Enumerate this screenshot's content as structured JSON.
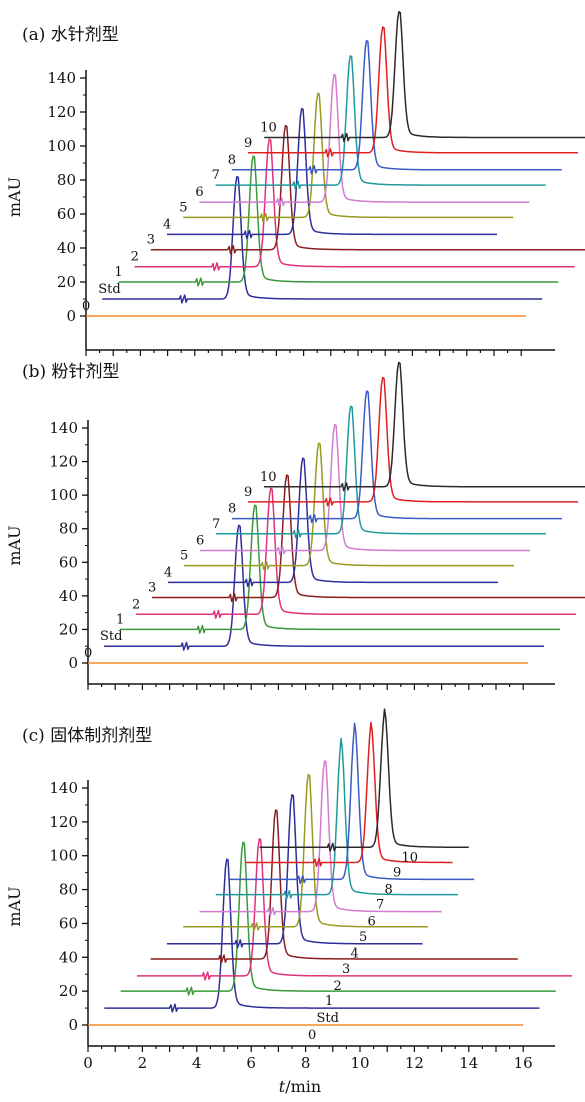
{
  "chart_data": [
    {
      "type": "line",
      "title": "(a) 水针剂型",
      "ylabel": "mAU",
      "ylim": [
        0,
        140
      ],
      "yticks": [
        "0",
        "20",
        "40",
        "60",
        "80",
        "100",
        "120",
        "140"
      ],
      "series": [
        {
          "name": "0",
          "color": "#F28A2E",
          "offset": 0,
          "x_range": [
            0,
            16
          ],
          "peaks": []
        },
        {
          "name": "Std",
          "color": "#2E2E9A",
          "offset": 10,
          "x_range": [
            0,
            16
          ],
          "peaks": [
            {
              "x": 4.9,
              "h": 72
            }
          ]
        },
        {
          "name": "1",
          "color": "#3A9A3A",
          "offset": 20,
          "x_range": [
            0,
            16
          ],
          "peaks": [
            {
              "x": 4.9,
              "h": 74
            }
          ]
        },
        {
          "name": "2",
          "color": "#E0307A",
          "offset": 29,
          "x_range": [
            0,
            16
          ],
          "peaks": [
            {
              "x": 4.9,
              "h": 75
            }
          ]
        },
        {
          "name": "3",
          "color": "#8A1E1E",
          "offset": 39,
          "x_range": [
            0,
            16
          ],
          "peaks": [
            {
              "x": 4.9,
              "h": 73
            }
          ]
        },
        {
          "name": "4",
          "color": "#2E2E9A",
          "offset": 48,
          "x_range": [
            0,
            12
          ],
          "peaks": [
            {
              "x": 4.9,
              "h": 74
            }
          ]
        },
        {
          "name": "5",
          "color": "#9A9A20",
          "offset": 58,
          "x_range": [
            0,
            12
          ],
          "peaks": [
            {
              "x": 4.9,
              "h": 73
            }
          ]
        },
        {
          "name": "6",
          "color": "#D27BD2",
          "offset": 67,
          "x_range": [
            0,
            12
          ],
          "peaks": [
            {
              "x": 4.9,
              "h": 75
            }
          ]
        },
        {
          "name": "7",
          "color": "#1F9A9A",
          "offset": 77,
          "x_range": [
            0,
            12
          ],
          "peaks": [
            {
              "x": 4.9,
              "h": 76
            }
          ]
        },
        {
          "name": "8",
          "color": "#3B5BC4",
          "offset": 86,
          "x_range": [
            0,
            12
          ],
          "peaks": [
            {
              "x": 4.9,
              "h": 76
            }
          ]
        },
        {
          "name": "9",
          "color": "#E02020",
          "offset": 96,
          "x_range": [
            0,
            12
          ],
          "peaks": [
            {
              "x": 4.9,
              "h": 74
            }
          ]
        },
        {
          "name": "10",
          "color": "#2A2A2A",
          "offset": 105,
          "x_range": [
            0,
            12
          ],
          "peaks": [
            {
              "x": 4.9,
              "h": 74
            }
          ]
        }
      ]
    },
    {
      "type": "line",
      "title": "(b) 粉针剂型",
      "ylabel": "mAU",
      "ylim": [
        0,
        140
      ],
      "yticks": [
        "0",
        "20",
        "40",
        "60",
        "80",
        "100",
        "120",
        "140"
      ],
      "series": [
        {
          "name": "0",
          "color": "#F28A2E",
          "offset": 0,
          "x_range": [
            0,
            16
          ],
          "peaks": []
        },
        {
          "name": "Std",
          "color": "#2E2E9A",
          "offset": 10,
          "x_range": [
            0,
            16
          ],
          "peaks": [
            {
              "x": 4.9,
              "h": 72
            }
          ]
        },
        {
          "name": "1",
          "color": "#3A9A3A",
          "offset": 20,
          "x_range": [
            0,
            16
          ],
          "peaks": [
            {
              "x": 4.9,
              "h": 74
            }
          ]
        },
        {
          "name": "2",
          "color": "#E0307A",
          "offset": 29,
          "x_range": [
            0,
            16
          ],
          "peaks": [
            {
              "x": 4.9,
              "h": 75
            }
          ]
        },
        {
          "name": "3",
          "color": "#8A1E1E",
          "offset": 39,
          "x_range": [
            0,
            16
          ],
          "peaks": [
            {
              "x": 4.9,
              "h": 73
            }
          ]
        },
        {
          "name": "4",
          "color": "#2E2E9A",
          "offset": 48,
          "x_range": [
            0,
            12
          ],
          "peaks": [
            {
              "x": 4.9,
              "h": 74
            }
          ]
        },
        {
          "name": "5",
          "color": "#9A9A20",
          "offset": 58,
          "x_range": [
            0,
            12
          ],
          "peaks": [
            {
              "x": 4.9,
              "h": 73
            }
          ]
        },
        {
          "name": "6",
          "color": "#D27BD2",
          "offset": 67,
          "x_range": [
            0,
            12
          ],
          "peaks": [
            {
              "x": 4.9,
              "h": 75
            }
          ]
        },
        {
          "name": "7",
          "color": "#1F9A9A",
          "offset": 77,
          "x_range": [
            0,
            12
          ],
          "peaks": [
            {
              "x": 4.9,
              "h": 76
            }
          ]
        },
        {
          "name": "8",
          "color": "#3B5BC4",
          "offset": 86,
          "x_range": [
            0,
            12
          ],
          "peaks": [
            {
              "x": 4.9,
              "h": 76
            }
          ]
        },
        {
          "name": "9",
          "color": "#E02020",
          "offset": 96,
          "x_range": [
            0,
            12
          ],
          "peaks": [
            {
              "x": 4.9,
              "h": 74
            }
          ]
        },
        {
          "name": "10",
          "color": "#2A2A2A",
          "offset": 105,
          "x_range": [
            0,
            12
          ],
          "peaks": [
            {
              "x": 4.9,
              "h": 74
            }
          ]
        }
      ]
    },
    {
      "type": "line",
      "title": "(c) 固体制剂剂型",
      "xlabel": "t/min",
      "ylabel": "mAU",
      "ylim": [
        0,
        140
      ],
      "xlim": [
        0,
        16
      ],
      "xticks": [
        "0",
        "2",
        "4",
        "6",
        "8",
        "10",
        "12",
        "14",
        "16"
      ],
      "yticks": [
        "0",
        "20",
        "40",
        "60",
        "80",
        "100",
        "120",
        "140"
      ],
      "series": [
        {
          "name": "0",
          "color": "#F28A2E",
          "offset": 0,
          "x_range": [
            0,
            16
          ],
          "peaks": []
        },
        {
          "name": "Std",
          "color": "#2E2E9A",
          "offset": 10,
          "x_range": [
            0.6,
            16.6
          ],
          "peaks": [
            {
              "x": 5.1,
              "h": 88
            }
          ]
        },
        {
          "name": "1",
          "color": "#3A9A3A",
          "offset": 20,
          "x_range": [
            1.2,
            17.2
          ],
          "peaks": [
            {
              "x": 5.7,
              "h": 88
            }
          ]
        },
        {
          "name": "2",
          "color": "#E0307A",
          "offset": 29,
          "x_range": [
            1.8,
            17.8
          ],
          "peaks": [
            {
              "x": 6.3,
              "h": 81
            }
          ]
        },
        {
          "name": "3",
          "color": "#8A1E1E",
          "offset": 39,
          "x_range": [
            2.3,
            15.8
          ],
          "peaks": [
            {
              "x": 6.9,
              "h": 88
            }
          ]
        },
        {
          "name": "4",
          "color": "#2E2E9A",
          "offset": 48,
          "x_range": [
            2.9,
            12.3
          ],
          "peaks": [
            {
              "x": 7.5,
              "h": 88
            }
          ]
        },
        {
          "name": "5",
          "color": "#9A9A20",
          "offset": 58,
          "x_range": [
            3.5,
            12.5
          ],
          "peaks": [
            {
              "x": 8.1,
              "h": 90
            }
          ]
        },
        {
          "name": "6",
          "color": "#D27BD2",
          "offset": 67,
          "x_range": [
            4.1,
            13.0
          ],
          "peaks": [
            {
              "x": 8.7,
              "h": 89
            }
          ]
        },
        {
          "name": "7",
          "color": "#1F9A9A",
          "offset": 77,
          "x_range": [
            4.7,
            13.6
          ],
          "peaks": [
            {
              "x": 9.3,
              "h": 87
            }
          ]
        },
        {
          "name": "8",
          "color": "#3B5BC4",
          "offset": 86,
          "x_range": [
            5.2,
            14.2
          ],
          "peaks": [
            {
              "x": 9.8,
              "h": 87
            }
          ]
        },
        {
          "name": "9",
          "color": "#E02020",
          "offset": 96,
          "x_range": [
            5.8,
            13.4
          ],
          "peaks": [
            {
              "x": 10.4,
              "h": 78
            }
          ]
        },
        {
          "name": "10",
          "color": "#2A2A2A",
          "offset": 105,
          "x_range": [
            6.3,
            14.0
          ],
          "peaks": [
            {
              "x": 10.9,
              "h": 77
            }
          ]
        }
      ]
    }
  ]
}
